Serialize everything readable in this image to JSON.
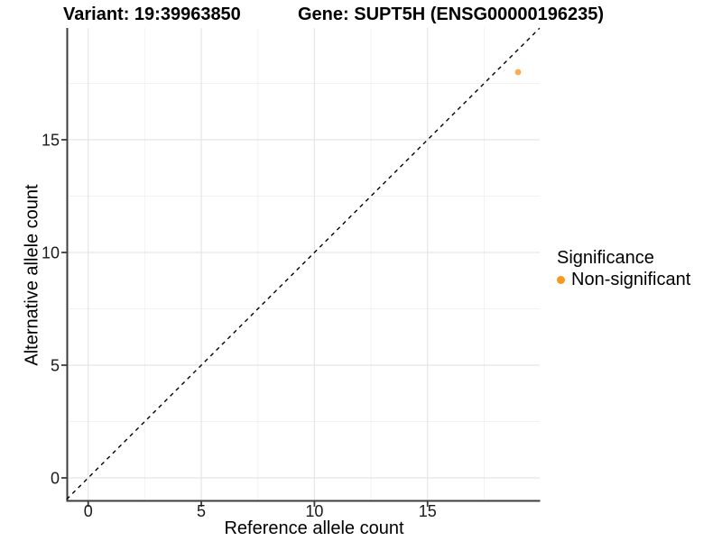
{
  "chart_data": {
    "type": "scatter",
    "titles": [
      "Variant: 19:39963850",
      "Gene: SUPT5H (ENSG00000196235)"
    ],
    "xlabel": "Reference allele count",
    "ylabel": "Alternative allele count",
    "x_ticks": [
      0,
      5,
      10,
      15
    ],
    "y_ticks": [
      0,
      5,
      10,
      15
    ],
    "x_minor_ticks": [
      2.5,
      7.5,
      12.5,
      17.5
    ],
    "y_minor_ticks": [
      2.5,
      7.5,
      12.5,
      17.5
    ],
    "xlim": [
      -0.95,
      19.95
    ],
    "ylim": [
      -1.0,
      19.95
    ],
    "grid": "major and minor gridlines, white background",
    "reference_line": {
      "type": "identity y=x",
      "style": "dashed",
      "color": "#000000"
    },
    "series": [
      {
        "name": "Non-significant",
        "color": "#F8981F",
        "points": [
          {
            "x": 19,
            "y": 18
          }
        ]
      }
    ],
    "legend": {
      "title": "Significance",
      "position": "right",
      "items": [
        {
          "label": "Non-significant",
          "color": "#F8981F"
        }
      ]
    },
    "style_colors": {
      "axis_line": "#3C3C3C",
      "major_grid": "#E5E5E5",
      "minor_grid": "#F2F2F2",
      "tick_text": "#1A1A1A"
    }
  }
}
